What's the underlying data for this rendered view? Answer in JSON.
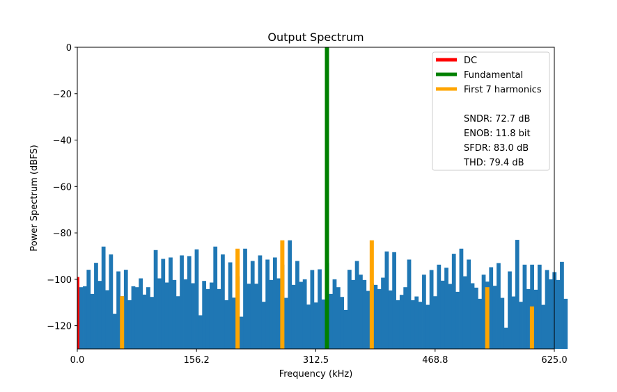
{
  "chart_data": {
    "type": "bar",
    "title": "Output Spectrum",
    "xlabel": "Frequency (kHz)",
    "ylabel": "Power Spectrum (dBFS)",
    "xlim": [
      0,
      625.0
    ],
    "ylim": [
      -130,
      0
    ],
    "x_ticks": [
      0.0,
      156.2,
      312.5,
      468.8,
      625.0
    ],
    "x_tick_labels": [
      "0.0",
      "156.2",
      "312.5",
      "468.8",
      "625.0"
    ],
    "y_ticks": [
      0,
      -20,
      -40,
      -60,
      -80,
      -100,
      -120
    ],
    "y_tick_labels": [
      "0",
      "−20",
      "−40",
      "−60",
      "−80",
      "−100",
      "−120"
    ],
    "bin_width_khz": 4.883,
    "noise_floor": {
      "color": "#1f77b4",
      "start_bin": 1,
      "values": [
        -103.4,
        -103.0,
        -95.9,
        -106.3,
        -92.9,
        -100.7,
        -85.9,
        -104.7,
        -89.3,
        -114.9,
        -96.6,
        -107.3,
        -95.9,
        -109.0,
        -103.0,
        -103.4,
        -99.6,
        -106.6,
        -103.4,
        -107.6,
        -87.4,
        -99.6,
        -91.2,
        -101.4,
        -90.6,
        -100.3,
        -107.3,
        -89.7,
        -100.0,
        -90.0,
        -101.7,
        -87.1,
        -115.5,
        -100.7,
        -104.2,
        -101.4,
        -85.9,
        -104.2,
        -89.3,
        -109.0,
        -92.7,
        -107.9,
        -98.7,
        -116.1,
        -86.8,
        -101.9,
        -92.1,
        -101.9,
        -89.7,
        -109.7,
        -91.5,
        -100.3,
        -90.6,
        -99.6,
        -93.7,
        -108.0,
        -83.2,
        -102.4,
        -92.1,
        -101.1,
        -100.0,
        -110.9,
        -96.0,
        -110.0,
        -95.7,
        -108.7,
        -93.0,
        -106.3,
        -100.0,
        -103.4,
        -107.6,
        -113.2,
        -95.9,
        -100.3,
        -92.1,
        -98.0,
        -100.3,
        -105.0,
        -101.7,
        -102.4,
        -104.2,
        -99.3,
        -88.0,
        -104.8,
        -88.3,
        -109.0,
        -106.7,
        -103.4,
        -91.5,
        -109.0,
        -107.4,
        -109.7,
        -98.0,
        -111.0,
        -96.0,
        -107.3,
        -93.7,
        -100.6,
        -95.0,
        -102.0,
        -89.0,
        -105.4,
        -86.8,
        -98.7,
        -91.5,
        -101.7,
        -103.6,
        -108.4,
        -98.0,
        -101.0,
        -94.8,
        -102.8,
        -93.0,
        -108.0,
        -120.9,
        -96.6,
        -107.4,
        -83.0,
        -109.7,
        -93.7,
        -104.2,
        -93.7,
        -104.5,
        -93.7,
        -111.0,
        -96.0,
        -100.0,
        -96.9,
        -100.3,
        -92.5,
        -108.4
      ]
    },
    "dc": {
      "label": "DC",
      "color": "#ff0000",
      "x": 0.0,
      "value": -99.0
    },
    "fundamental": {
      "label": "Fundamental",
      "color": "#008000",
      "x": 327.1,
      "value": 0.0
    },
    "harmonics": {
      "label": "First 7 harmonics",
      "color": "#ffa500",
      "points": [
        {
          "x": 58.6,
          "value": -107.3
        },
        {
          "x": 210.0,
          "value": -86.8
        },
        {
          "x": 268.6,
          "value": -83.2
        },
        {
          "x": 385.8,
          "value": -83.2
        },
        {
          "x": 537.1,
          "value": -103.4
        },
        {
          "x": 595.7,
          "value": -111.7
        }
      ]
    },
    "legend": {
      "position": "top-right",
      "entries": [
        "DC",
        "Fundamental",
        "First 7 harmonics"
      ],
      "metrics": [
        "SNDR: 72.7 dB",
        "ENOB: 11.8 bit",
        "SFDR: 83.0 dB",
        "THD: 79.4 dB"
      ]
    },
    "grid": false
  }
}
